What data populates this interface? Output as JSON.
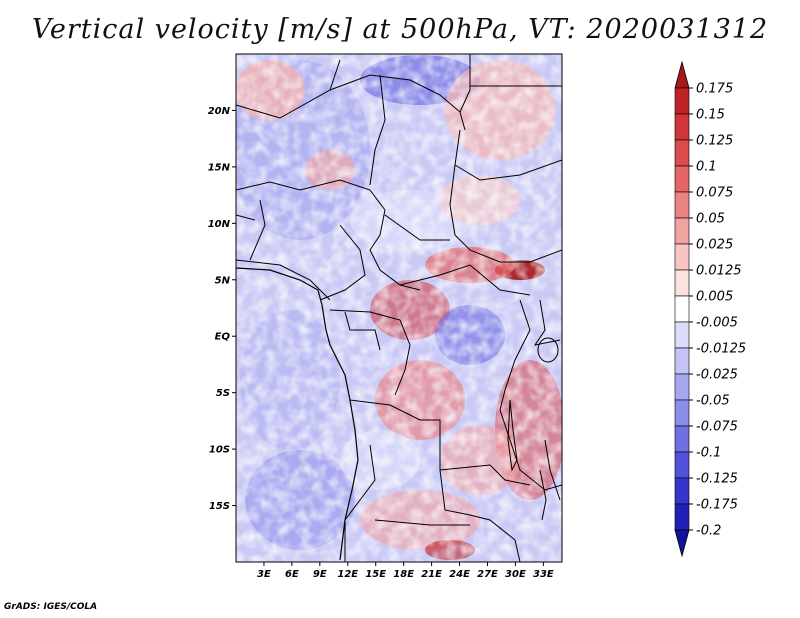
{
  "title": "Vertical velocity [m/s] at 500hPa, VT: 2020031312",
  "footer": "GrADS: IGES/COLA",
  "map": {
    "region": "Central Africa",
    "lat_range": [
      -20,
      25
    ],
    "lon_range": [
      0,
      35
    ],
    "lat_ticks": [
      {
        "label": "20N",
        "value": 20
      },
      {
        "label": "15N",
        "value": 15
      },
      {
        "label": "10N",
        "value": 10
      },
      {
        "label": "5N",
        "value": 5
      },
      {
        "label": "EQ",
        "value": 0
      },
      {
        "label": "5S",
        "value": -5
      },
      {
        "label": "10S",
        "value": -10
      },
      {
        "label": "15S",
        "value": -15
      }
    ],
    "lon_ticks": [
      {
        "label": "3E",
        "value": 3
      },
      {
        "label": "6E",
        "value": 6
      },
      {
        "label": "9E",
        "value": 9
      },
      {
        "label": "12E",
        "value": 12
      },
      {
        "label": "15E",
        "value": 15
      },
      {
        "label": "18E",
        "value": 18
      },
      {
        "label": "21E",
        "value": 21
      },
      {
        "label": "24E",
        "value": 24
      },
      {
        "label": "27E",
        "value": 27
      },
      {
        "label": "30E",
        "value": 30
      },
      {
        "label": "33E",
        "value": 33
      }
    ]
  },
  "colorbar": {
    "labels": [
      "0.175",
      "0.15",
      "0.125",
      "0.1",
      "0.075",
      "0.05",
      "0.025",
      "0.0125",
      "0.005",
      "-0.005",
      "-0.0125",
      "-0.025",
      "-0.05",
      "-0.075",
      "-0.1",
      "-0.125",
      "-0.175",
      "-0.2"
    ],
    "colors": [
      "#a8171a",
      "#bf2126",
      "#cf3539",
      "#db4c4c",
      "#e36565",
      "#ec8383",
      "#f3a2a2",
      "#f8c4c4",
      "#fce1e1",
      "#ffffff",
      "#dcdcfa",
      "#c3c3f6",
      "#a7a7f0",
      "#8c8ceb",
      "#6f6fe4",
      "#5151d9",
      "#3535cc",
      "#2121b8",
      "#12129a"
    ]
  }
}
